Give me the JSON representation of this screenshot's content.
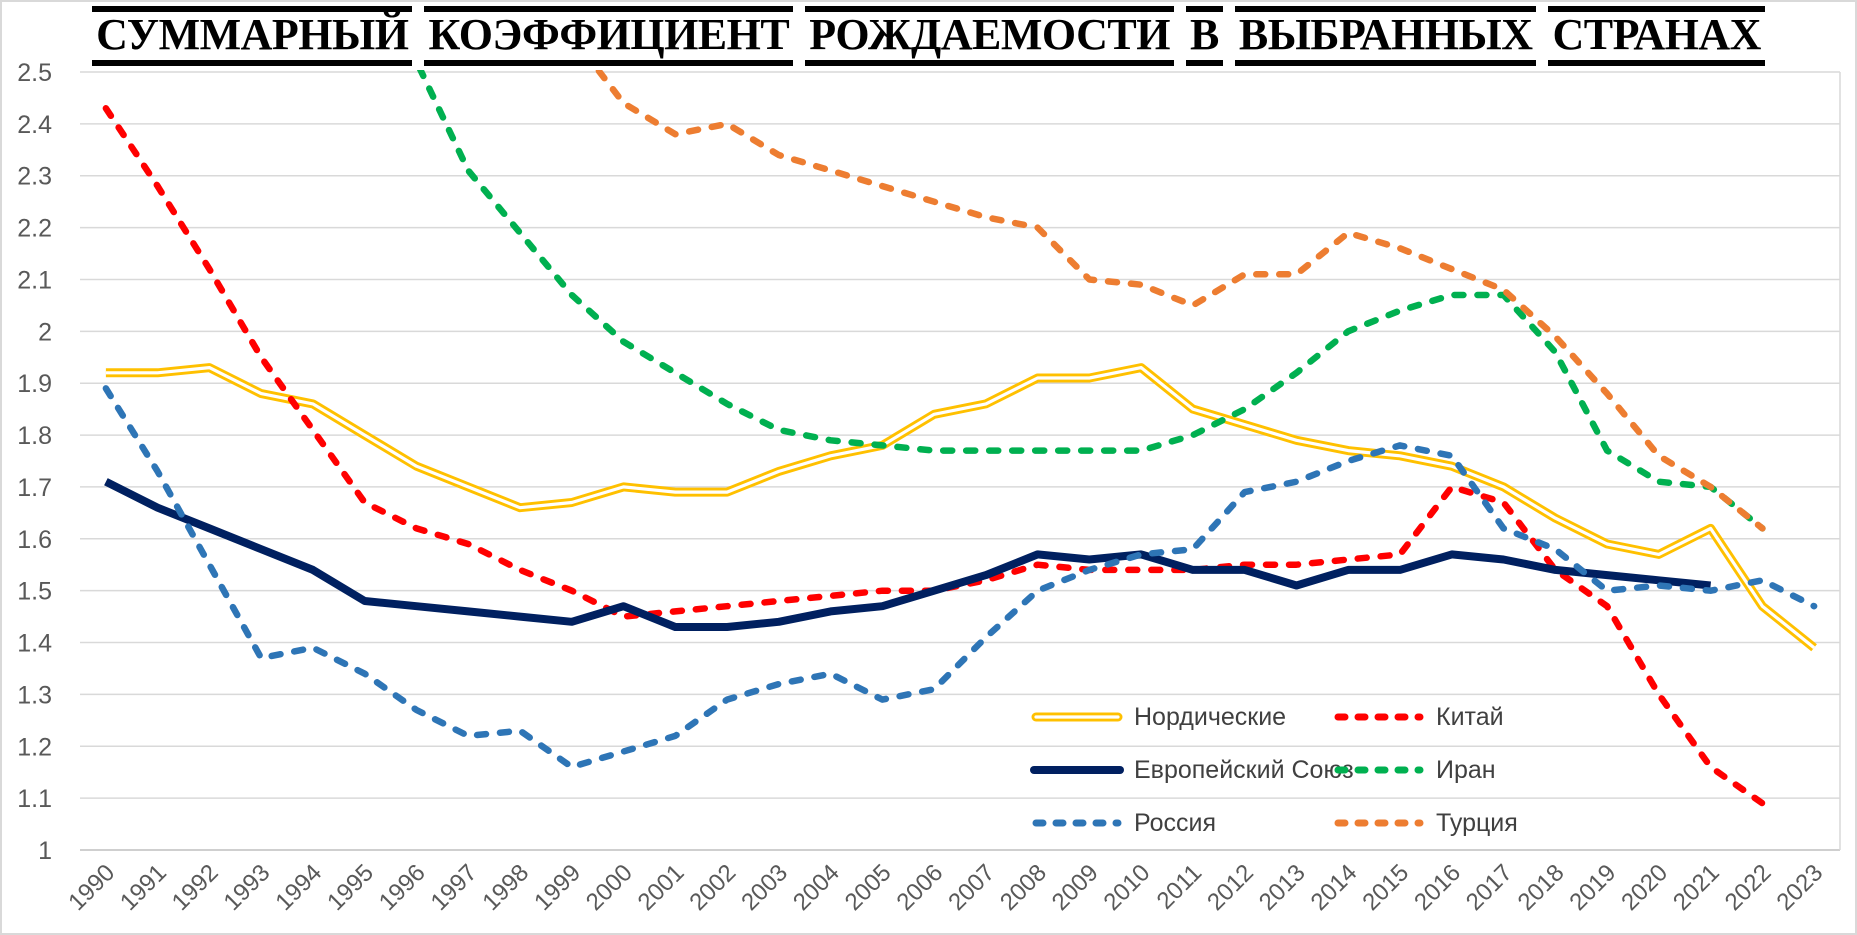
{
  "title": "СУММАРНЫЙ КОЭФФИЦИЕНТ РОЖДАЕМОСТИ В ВЫБРАННЫХ СТРАНАХ",
  "chart_data": {
    "type": "line",
    "x_labels": [
      "1990",
      "1991",
      "1992",
      "1993",
      "1994",
      "1995",
      "1996",
      "1997",
      "1998",
      "1999",
      "2000",
      "2001",
      "2002",
      "2003",
      "2004",
      "2005",
      "2006",
      "2007",
      "2008",
      "2009",
      "2010",
      "2011",
      "2012",
      "2013",
      "2014",
      "2015",
      "2016",
      "2017",
      "2018",
      "2019",
      "2020",
      "2021",
      "2022",
      "2023"
    ],
    "y_tick_labels": [
      "1",
      "1.1",
      "1.2",
      "1.3",
      "1.4",
      "1.5",
      "1.6",
      "1.7",
      "1.8",
      "1.9",
      "2",
      "2.1",
      "2.2",
      "2.3",
      "2.4",
      "2.5"
    ],
    "ylim": [
      1,
      2.5
    ],
    "grid": true,
    "legend_position": "inside-bottom-right",
    "axis_label_color": "#595959",
    "gridline_color": "#D9D9D9",
    "series": [
      {
        "key": "nordic",
        "name": "Нордические",
        "color": "#FFC000",
        "style": "double",
        "start_year": 1990,
        "values": [
          1.92,
          1.92,
          1.93,
          1.88,
          1.86,
          1.8,
          1.74,
          1.7,
          1.66,
          1.67,
          1.7,
          1.69,
          1.69,
          1.73,
          1.76,
          1.78,
          1.84,
          1.86,
          1.91,
          1.91,
          1.93,
          1.85,
          1.82,
          1.79,
          1.77,
          1.76,
          1.74,
          1.7,
          1.64,
          1.59,
          1.57,
          1.62,
          1.47,
          1.39
        ]
      },
      {
        "key": "china",
        "name": "Китай",
        "color": "#FF0000",
        "style": "dashed",
        "start_year": 1990,
        "values": [
          2.43,
          2.28,
          2.12,
          1.95,
          1.81,
          1.67,
          1.62,
          1.59,
          1.54,
          1.5,
          1.45,
          1.46,
          1.47,
          1.48,
          1.49,
          1.5,
          1.5,
          1.52,
          1.55,
          1.54,
          1.54,
          1.54,
          1.55,
          1.55,
          1.56,
          1.57,
          1.7,
          1.67,
          1.54,
          1.47,
          1.3,
          1.16,
          1.09
        ]
      },
      {
        "key": "eu",
        "name": "Европейский Союз",
        "color": "#002060",
        "style": "solid",
        "start_year": 1990,
        "values": [
          1.71,
          1.66,
          1.62,
          1.58,
          1.54,
          1.48,
          1.47,
          1.46,
          1.45,
          1.44,
          1.47,
          1.43,
          1.43,
          1.44,
          1.46,
          1.47,
          1.5,
          1.53,
          1.57,
          1.56,
          1.57,
          1.54,
          1.54,
          1.51,
          1.54,
          1.54,
          1.57,
          1.56,
          1.54,
          1.53,
          1.52,
          1.51
        ]
      },
      {
        "key": "iran",
        "name": "Иран",
        "color": "#00B050",
        "style": "dashed",
        "start_year": 1995,
        "values": [
          2.8,
          2.52,
          2.31,
          2.19,
          2.07,
          1.98,
          1.92,
          1.86,
          1.81,
          1.79,
          1.78,
          1.77,
          1.77,
          1.77,
          1.77,
          1.77,
          1.8,
          1.85,
          1.92,
          2.0,
          2.04,
          2.07,
          2.07,
          1.96,
          1.77,
          1.71,
          1.7,
          1.62
        ]
      },
      {
        "key": "russia",
        "name": "Россия",
        "color": "#2E75B6",
        "style": "dashed",
        "start_year": 1990,
        "values": [
          1.89,
          1.73,
          1.55,
          1.37,
          1.39,
          1.34,
          1.27,
          1.22,
          1.23,
          1.16,
          1.19,
          1.22,
          1.29,
          1.32,
          1.34,
          1.29,
          1.31,
          1.41,
          1.5,
          1.54,
          1.57,
          1.58,
          1.69,
          1.71,
          1.75,
          1.78,
          1.76,
          1.62,
          1.58,
          1.5,
          1.51,
          1.5,
          1.52,
          1.47
        ]
      },
      {
        "key": "turkey",
        "name": "Турция",
        "color": "#ED7D31",
        "style": "dashed",
        "start_year": 1998,
        "values": [
          2.72,
          2.57,
          2.44,
          2.38,
          2.4,
          2.34,
          2.31,
          2.28,
          2.25,
          2.22,
          2.2,
          2.1,
          2.09,
          2.05,
          2.11,
          2.11,
          2.19,
          2.16,
          2.12,
          2.08,
          1.99,
          1.88,
          1.76,
          1.7,
          1.62
        ]
      }
    ],
    "legend_rows": [
      [
        "Нордические",
        "Китай"
      ],
      [
        "Европейский Союз",
        "Иран"
      ],
      [
        "Россия",
        "Турция"
      ]
    ]
  }
}
